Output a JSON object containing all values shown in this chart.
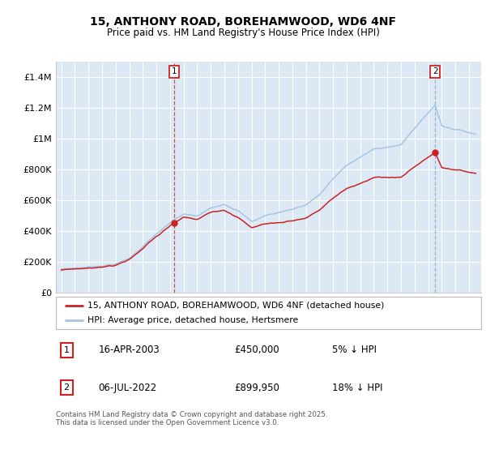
{
  "title": "15, ANTHONY ROAD, BOREHAMWOOD, WD6 4NF",
  "subtitle": "Price paid vs. HM Land Registry's House Price Index (HPI)",
  "legend_line1": "15, ANTHONY ROAD, BOREHAMWOOD, WD6 4NF (detached house)",
  "legend_line2": "HPI: Average price, detached house, Hertsmere",
  "annotation1_label": "1",
  "annotation1_date": "16-APR-2003",
  "annotation1_price": "£450,000",
  "annotation1_hpi": "5% ↓ HPI",
  "annotation1_year": 2003.29,
  "annotation1_value": 450000,
  "annotation2_label": "2",
  "annotation2_date": "06-JUL-2022",
  "annotation2_price": "£899,950",
  "annotation2_hpi": "18% ↓ HPI",
  "annotation2_year": 2022.51,
  "annotation2_value": 899950,
  "footer": "Contains HM Land Registry data © Crown copyright and database right 2025.\nThis data is licensed under the Open Government Licence v3.0.",
  "hpi_line_color": "#a8c4e0",
  "price_line_color": "#cc2222",
  "plot_bg_color": "#dce9f5",
  "vline1_color": "#cc3333",
  "vline2_color": "#7799bb",
  "ylim": [
    0,
    1500000
  ],
  "ytick_vals": [
    0,
    200000,
    400000,
    600000,
    800000,
    1000000,
    1200000,
    1400000
  ],
  "ytick_labels": [
    "£0",
    "£200K",
    "£400K",
    "£600K",
    "£800K",
    "£1M",
    "£1.2M",
    "£1.4M"
  ],
  "xstart": 1995,
  "xend": 2025
}
